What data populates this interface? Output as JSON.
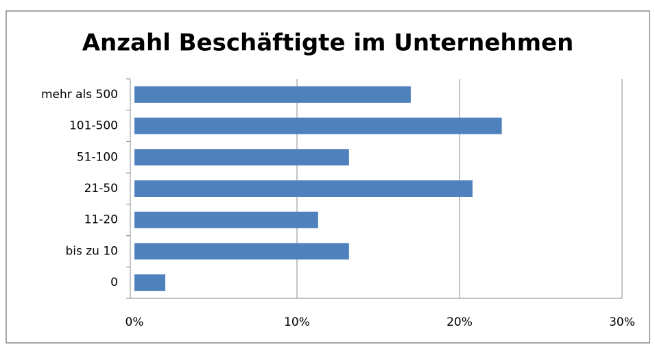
{
  "chart_data": {
    "type": "bar",
    "orientation": "horizontal",
    "title": "Anzahl Beschäftigte im Unternehmen",
    "categories": [
      "mehr als 500",
      "101-500",
      "51-100",
      "21-50",
      "11-20",
      "bis zu 10",
      "0"
    ],
    "values": [
      17.0,
      22.6,
      13.2,
      20.8,
      11.3,
      13.2,
      1.9
    ],
    "color": "#4f81bd",
    "xlim": [
      0,
      30
    ],
    "xticks": [
      {
        "value": 0,
        "label": "0%"
      },
      {
        "value": 10,
        "label": "10%"
      },
      {
        "value": 20,
        "label": "20%"
      },
      {
        "value": 30,
        "label": "30%"
      }
    ],
    "grid": true
  }
}
